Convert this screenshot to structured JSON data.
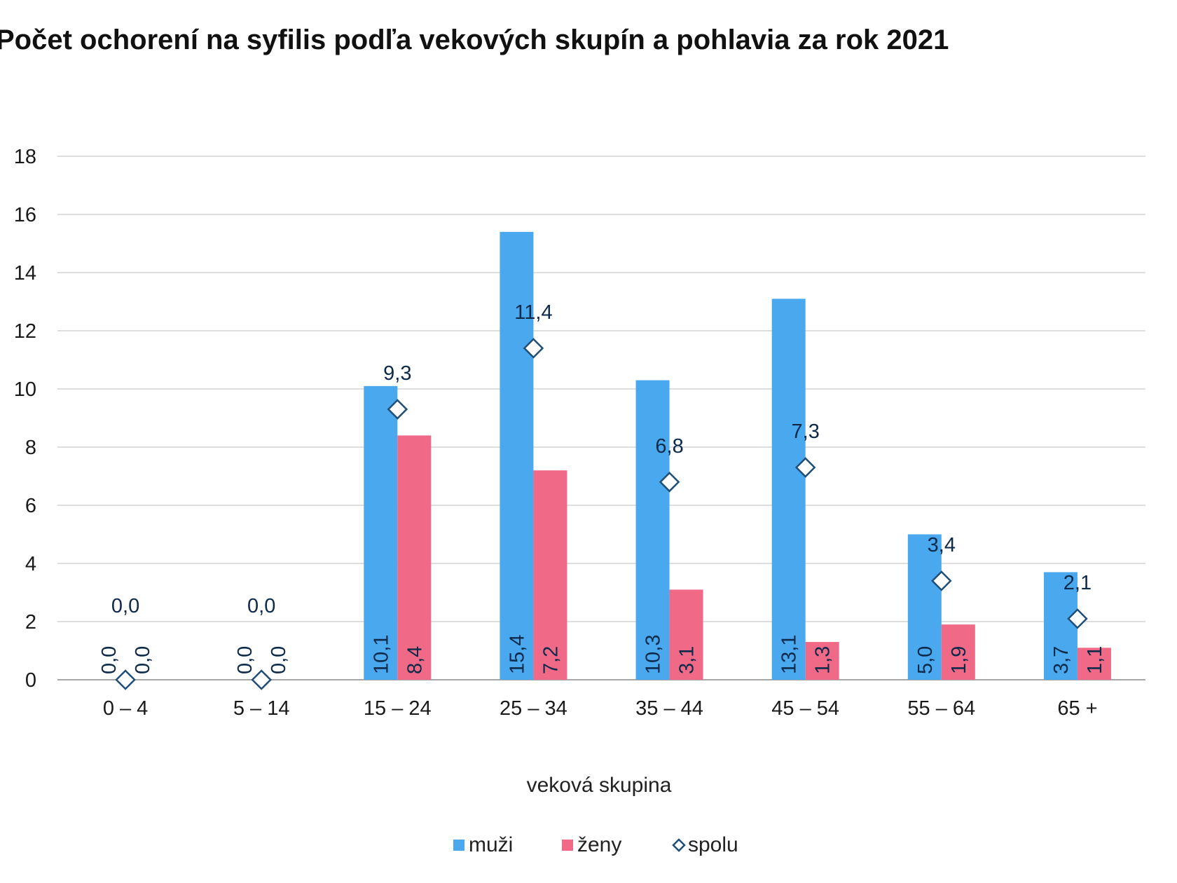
{
  "chart_data": {
    "type": "bar",
    "title": "Počet ochorení na syfilis podľa vekových skupín a pohlavia za rok 2021",
    "xlabel": "veková skupina",
    "ylabel": "",
    "ylim": [
      0,
      18
    ],
    "yticks": [
      "0",
      "2",
      "4",
      "6",
      "8",
      "10",
      "12",
      "14",
      "16",
      "18"
    ],
    "categories": [
      "0 – 4",
      "5 – 14",
      "15 – 24",
      "25 – 34",
      "35 – 44",
      "45 – 54",
      "55 – 64",
      "65 +"
    ],
    "series": [
      {
        "name": "muži",
        "kind": "bar",
        "color": "#4aa8ee",
        "values": [
          0.0,
          0.0,
          10.1,
          15.4,
          10.3,
          13.1,
          5.0,
          3.7
        ],
        "labels": [
          "0,0",
          "0,0",
          "10,1",
          "15,4",
          "10,3",
          "13,1",
          "5,0",
          "3,7"
        ]
      },
      {
        "name": "ženy",
        "kind": "bar",
        "color": "#f06a87",
        "values": [
          0.0,
          0.0,
          8.4,
          7.2,
          3.1,
          1.3,
          1.9,
          1.1
        ],
        "labels": [
          "0,0",
          "0,0",
          "8,4",
          "7,2",
          "3,1",
          "1,3",
          "1,9",
          "1,1"
        ]
      },
      {
        "name": "spolu",
        "kind": "marker",
        "color": "#1f4e79",
        "values": [
          0.0,
          0.0,
          9.3,
          11.4,
          6.8,
          7.3,
          3.4,
          2.1
        ],
        "labels": [
          "0,0",
          "0,0",
          "9,3",
          "11,4",
          "6,8",
          "7,3",
          "3,4",
          "2,1"
        ]
      }
    ],
    "grid": true,
    "legend": "bottom-center"
  }
}
